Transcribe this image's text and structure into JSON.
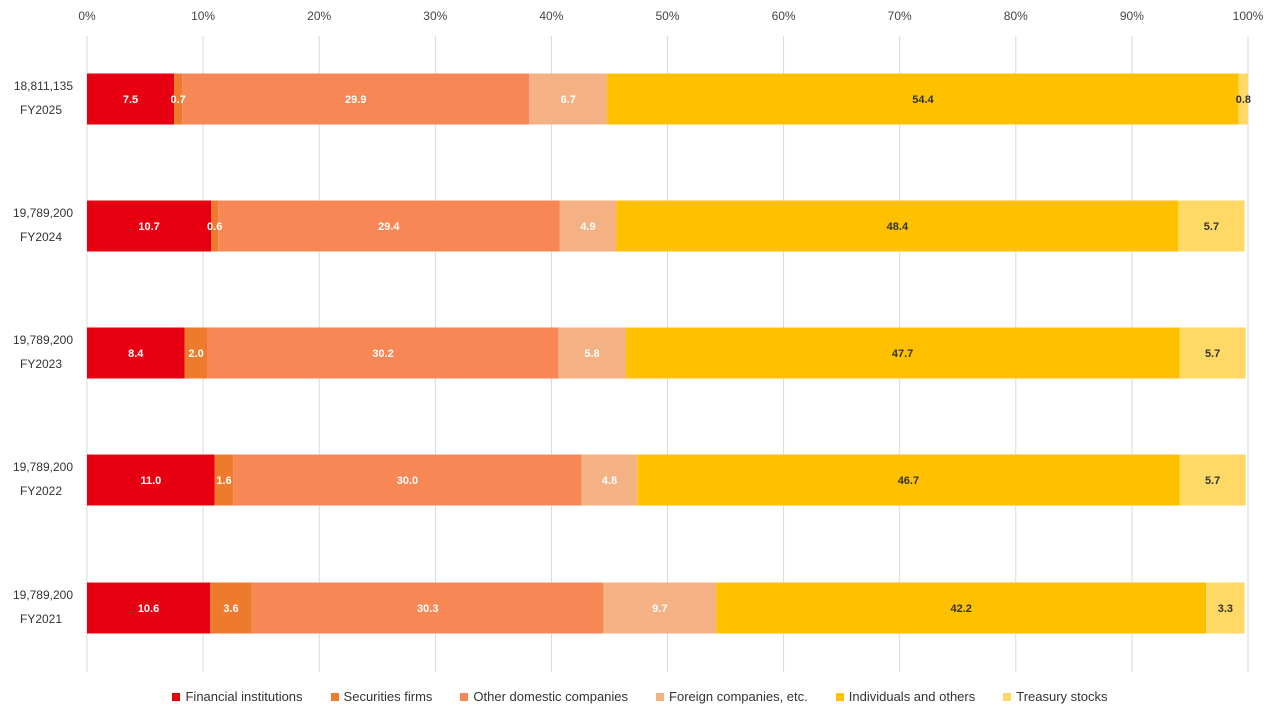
{
  "chart_data": {
    "type": "bar",
    "orientation": "horizontal",
    "stacked": true,
    "xlim": [
      0,
      100
    ],
    "x_ticks": [
      "0%",
      "10%",
      "20%",
      "30%",
      "40%",
      "50%",
      "60%",
      "70%",
      "80%",
      "90%",
      "100%"
    ],
    "grid": true,
    "legend_position": "bottom",
    "categories": [
      "FY2025",
      "FY2024",
      "FY2023",
      "FY2022",
      "FY2021"
    ],
    "category_totals": [
      "18,811,135",
      "19,789,200",
      "19,789,200",
      "19,789,200",
      "19,789,200"
    ],
    "series": [
      {
        "name": "Financial institutions",
        "color": "#e60012",
        "label_color": "#ffffff",
        "values": [
          7.5,
          10.7,
          8.4,
          11.0,
          10.6
        ]
      },
      {
        "name": "Securities firms",
        "color": "#ee7a2e",
        "label_color": "#ffffff",
        "values": [
          0.7,
          0.6,
          2.0,
          1.6,
          3.6
        ]
      },
      {
        "name": "Other domestic companies",
        "color": "#f78856",
        "label_color": "#ffffff",
        "values": [
          29.9,
          29.4,
          30.2,
          30.0,
          30.3
        ]
      },
      {
        "name": "Foreign companies, etc.",
        "color": "#f4b183",
        "label_color": "#ffffff",
        "values": [
          6.7,
          4.9,
          5.8,
          4.8,
          9.7
        ]
      },
      {
        "name": "Individuals and others",
        "color": "#ffc000",
        "label_color": "#333333",
        "values": [
          54.4,
          48.4,
          47.7,
          46.7,
          42.2
        ]
      },
      {
        "name": "Treasury stocks",
        "color": "#ffd966",
        "label_color": "#333333",
        "values": [
          0.8,
          5.7,
          5.7,
          5.7,
          3.3
        ]
      }
    ]
  }
}
